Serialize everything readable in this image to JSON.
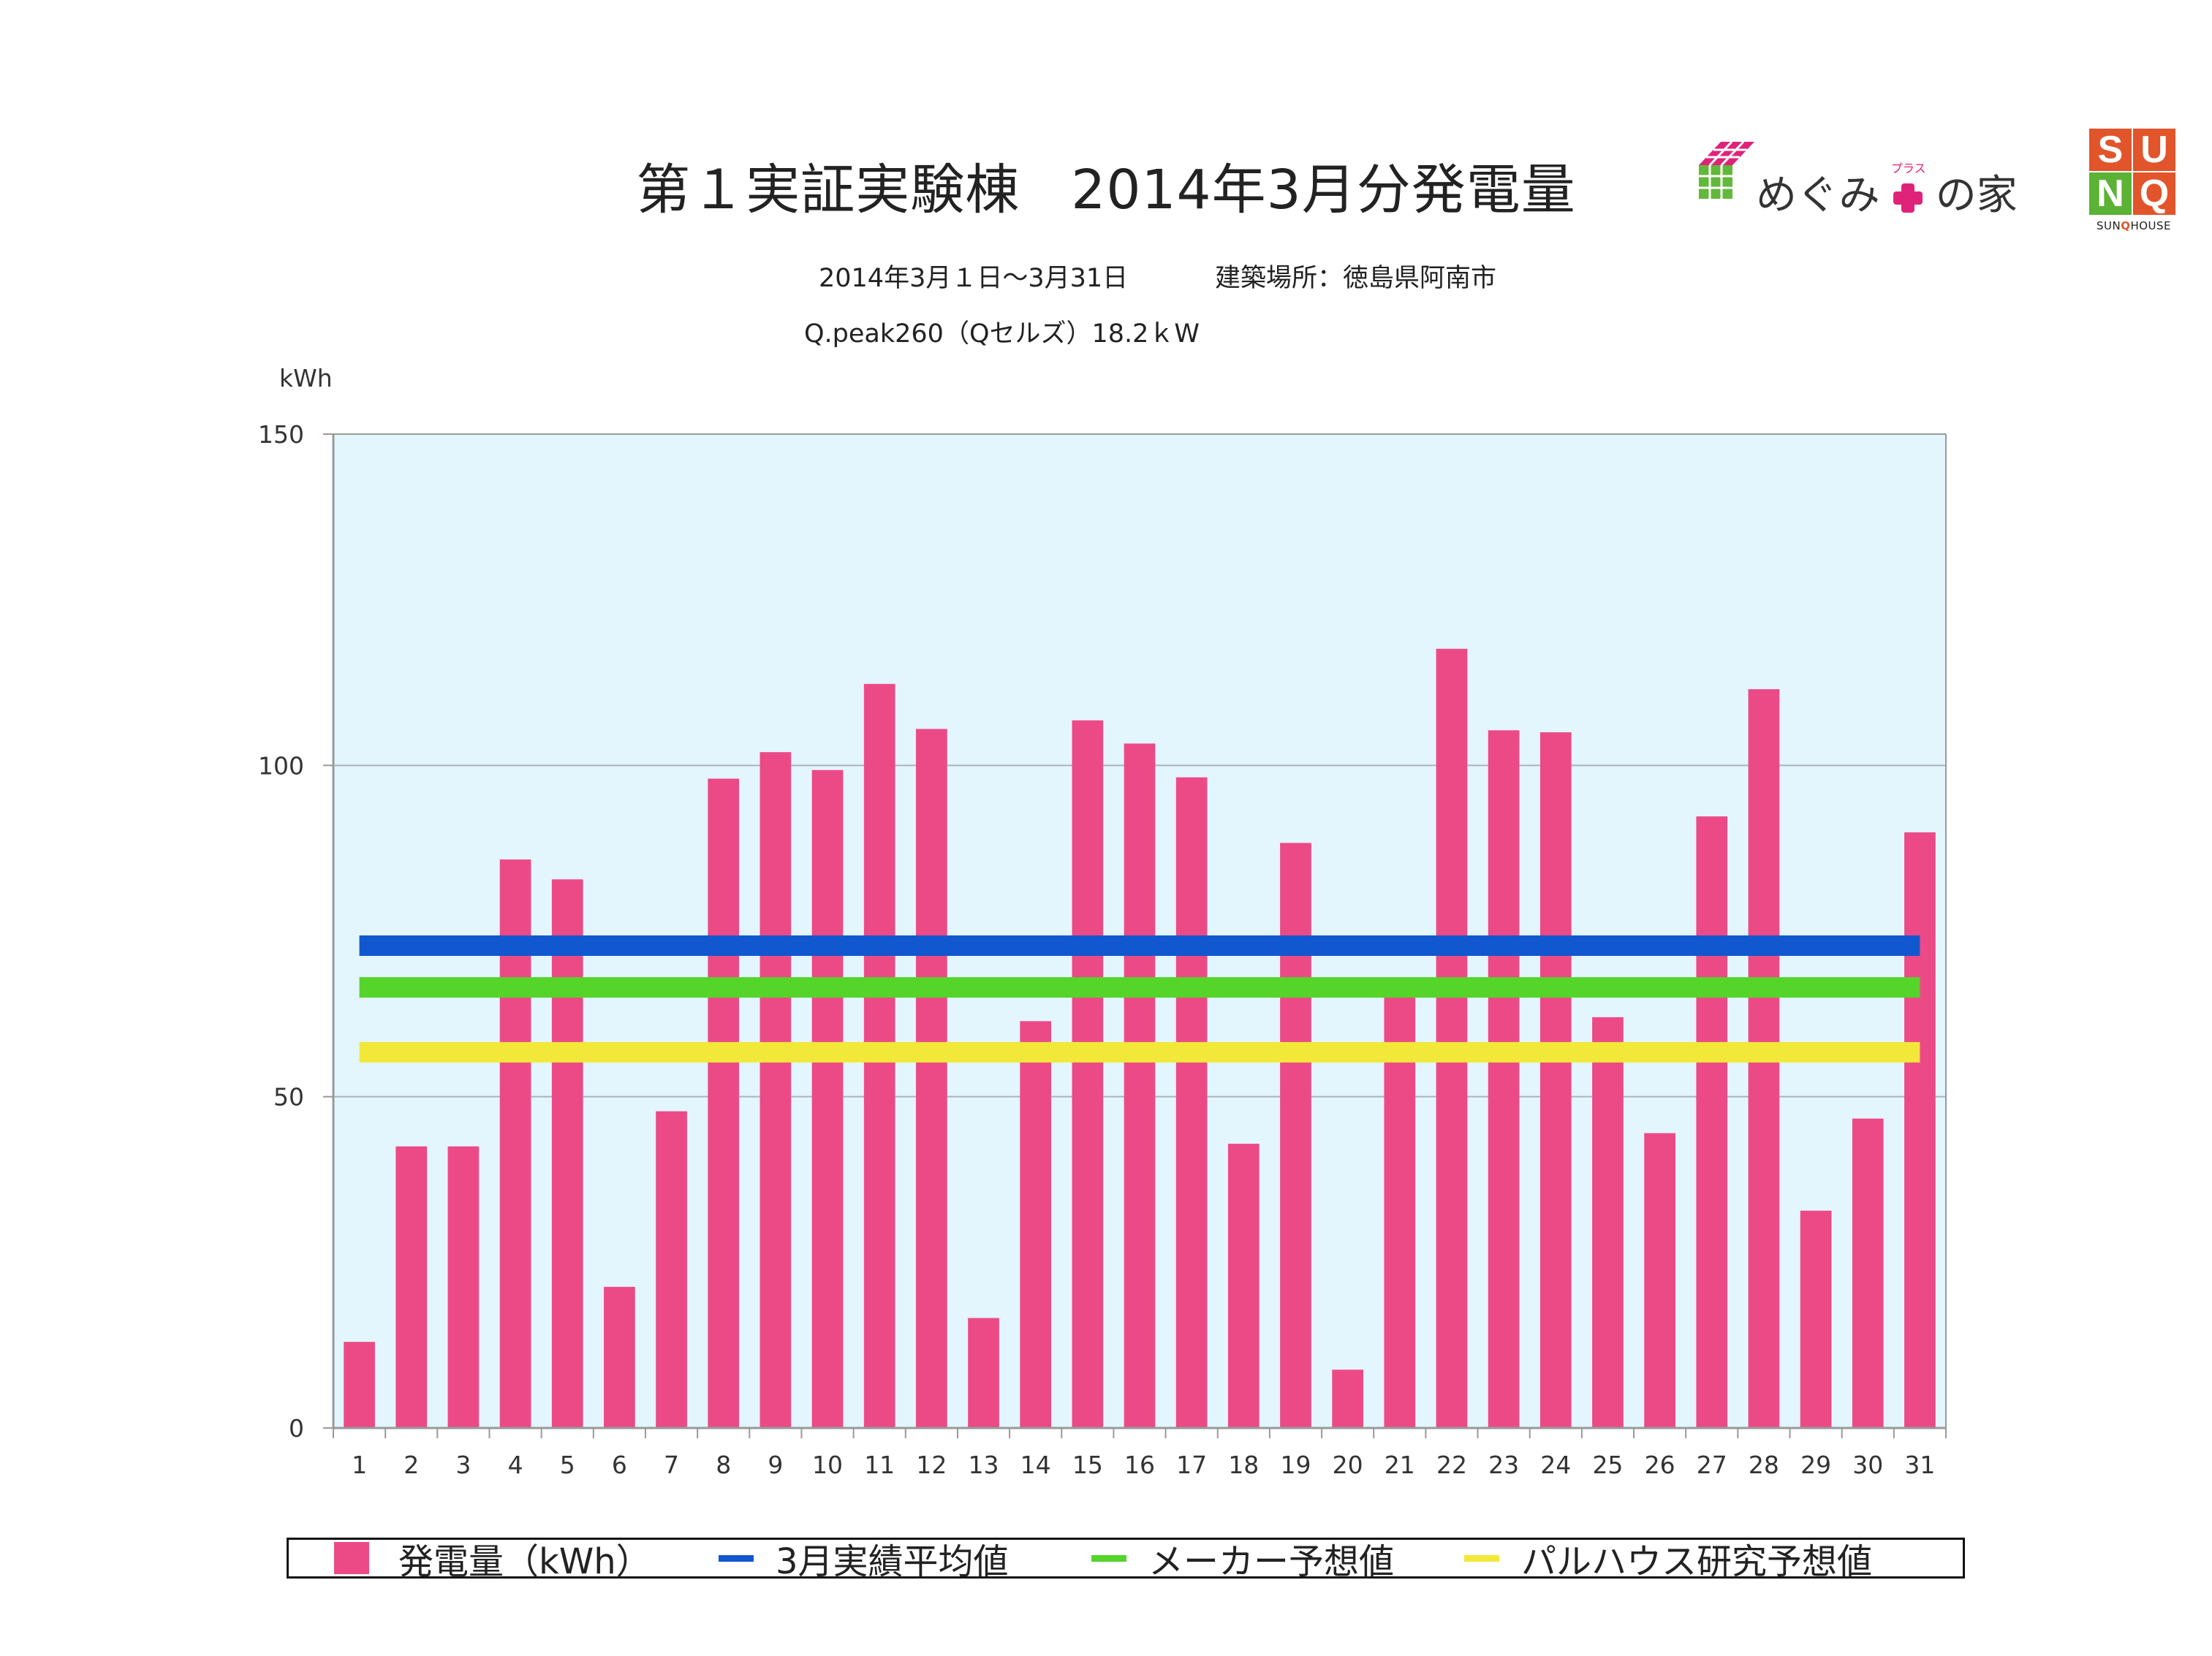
{
  "header": {
    "title_left": "第１実証実験棟",
    "title_right": "2014年3月分発電量",
    "period": "2014年3月１日〜3月31日",
    "location": "建築場所：徳島県阿南市",
    "panel_spec": "Q.peak260（Qセルズ）18.2ｋW",
    "unit": "kWh"
  },
  "logos": {
    "megumi": {
      "text_before": "めぐみ",
      "plus_small": "プラス",
      "text_after": "の家"
    },
    "sunq": {
      "letters": [
        "S",
        "U",
        "N",
        "Q"
      ],
      "caption_left": "SUN",
      "caption_q": "Q",
      "caption_right": "HOUSE"
    }
  },
  "colors": {
    "bar": "#ec4a86",
    "avg": "#1158d0",
    "maker": "#55d42a",
    "palhouse": "#f2e83a",
    "plot_bg": "#e3f5fd",
    "grid": "#aab4bb",
    "axis": "#999999"
  },
  "chart_data": {
    "type": "bar",
    "title": "第１実証実験棟　2014年3月分発電量",
    "ylabel": "kWh",
    "xlabel": "",
    "ylim": [
      0,
      150
    ],
    "yticks": [
      0,
      50,
      100,
      150
    ],
    "grid": true,
    "categories": [
      "1",
      "2",
      "3",
      "4",
      "5",
      "6",
      "7",
      "8",
      "9",
      "10",
      "11",
      "12",
      "13",
      "14",
      "15",
      "16",
      "17",
      "18",
      "19",
      "20",
      "21",
      "22",
      "23",
      "24",
      "25",
      "26",
      "27",
      "28",
      "29",
      "30",
      "31"
    ],
    "series": [
      {
        "name": "発電量（kWh）",
        "values": [
          13,
          42.5,
          42.5,
          85.8,
          82.8,
          21.3,
          47.8,
          98,
          102,
          99.3,
          112.3,
          105.5,
          16.6,
          61.4,
          106.8,
          103.3,
          98.2,
          42.9,
          88.3,
          8.8,
          66.5,
          117.6,
          105.3,
          105,
          62,
          44.5,
          92.3,
          111.5,
          32.8,
          46.7,
          89.9
        ]
      }
    ],
    "reference_lines": [
      {
        "name": "3月実績平均値",
        "value": 72.8,
        "color_key": "avg"
      },
      {
        "name": "メーカー予想値",
        "value": 66.5,
        "color_key": "maker"
      },
      {
        "name": "パルハウス研究予想値",
        "value": 56.7,
        "color_key": "palhouse"
      }
    ],
    "legend_position": "bottom"
  }
}
